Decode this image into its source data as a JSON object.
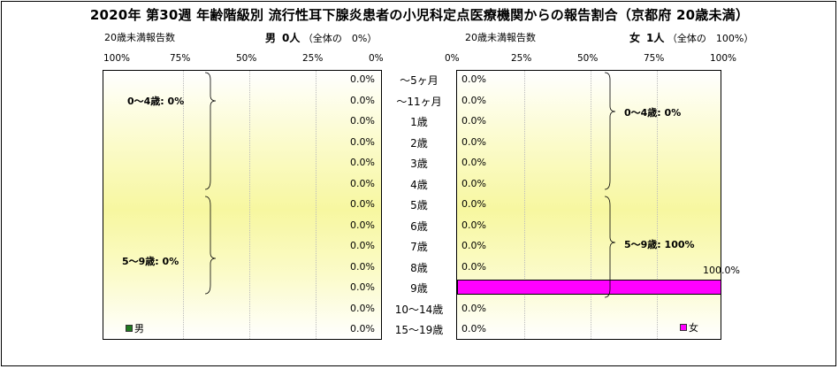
{
  "title": "2020年 第30週 年齢階級別 流行性耳下腺炎患者の小児科定点医療機関からの報告割合（京都府 20歳未満）",
  "left": {
    "header_count_label": "20歳未満報告数",
    "header_sex": "男",
    "header_count": "0人",
    "header_share": "（全体の　0%）",
    "ticks": [
      "100%",
      "75%",
      "50%",
      "25%",
      "0%"
    ],
    "bracket_labels": [
      "0～4歳: 0%",
      "5～9歳: 0%"
    ],
    "legend": "男"
  },
  "right": {
    "header_count_label": "20歳未満報告数",
    "header_sex": "女",
    "header_count": "1人",
    "header_share": "（全体の　100%）",
    "ticks": [
      "0%",
      "25%",
      "50%",
      "75%",
      "100%"
    ],
    "bracket_labels": [
      "0～4歳: 0%",
      "5～9歳: 100%"
    ],
    "legend": "女"
  },
  "chart_data": [
    {
      "type": "bar",
      "orientation": "horizontal",
      "direction": "right-to-left",
      "categories": [
        "～5ヶ月",
        "～11ヶ月",
        "1歳",
        "2歳",
        "3歳",
        "4歳",
        "5歳",
        "6歳",
        "7歳",
        "8歳",
        "9歳",
        "10～14歳",
        "15～19歳"
      ],
      "series": [
        {
          "name": "男",
          "values": [
            0,
            0,
            0,
            0,
            0,
            0,
            0,
            0,
            0,
            0,
            0,
            0,
            0
          ]
        }
      ],
      "value_labels": [
        "0.0%",
        "0.0%",
        "0.0%",
        "0.0%",
        "0.0%",
        "0.0%",
        "0.0%",
        "0.0%",
        "0.0%",
        "0.0%",
        "0.0%",
        "0.0%",
        "0.0%"
      ],
      "xlim": [
        0,
        100
      ],
      "color": "#1f7a1f",
      "legend_position": "bottom-left"
    },
    {
      "type": "bar",
      "orientation": "horizontal",
      "direction": "left-to-right",
      "categories": [
        "～5ヶ月",
        "～11ヶ月",
        "1歳",
        "2歳",
        "3歳",
        "4歳",
        "5歳",
        "6歳",
        "7歳",
        "8歳",
        "9歳",
        "10～14歳",
        "15～19歳"
      ],
      "series": [
        {
          "name": "女",
          "values": [
            0,
            0,
            0,
            0,
            0,
            0,
            0,
            0,
            0,
            0,
            100,
            0,
            0
          ]
        }
      ],
      "value_labels": [
        "0.0%",
        "0.0%",
        "0.0%",
        "0.0%",
        "0.0%",
        "0.0%",
        "0.0%",
        "0.0%",
        "0.0%",
        "0.0%",
        "100.0%",
        "0.0%",
        "0.0%"
      ],
      "xlim": [
        0,
        100
      ],
      "color": "#ff00ff",
      "legend_position": "bottom-right"
    }
  ]
}
